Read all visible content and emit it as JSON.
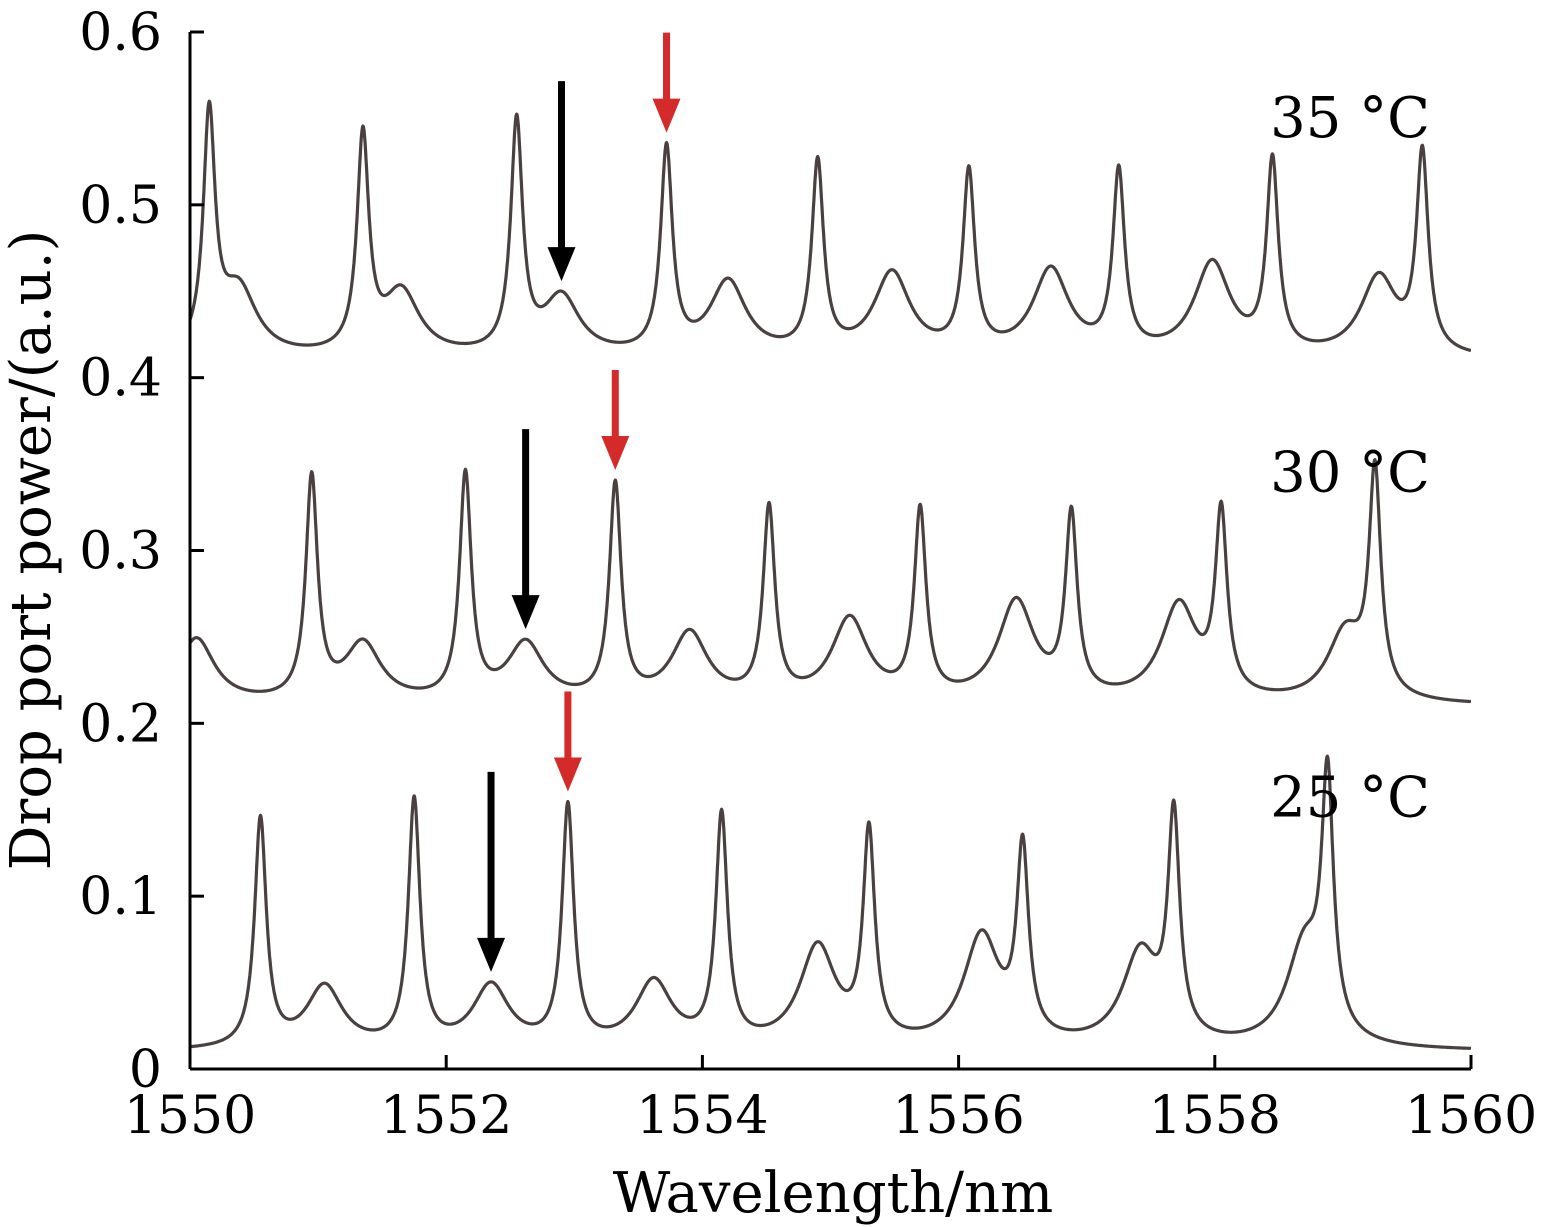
{
  "chart_data": {
    "type": "line",
    "title": "",
    "xlabel": "Wavelength/nm",
    "ylabel": "Drop port power/(a.u.)",
    "xlim": [
      1550,
      1560
    ],
    "ylim": [
      0,
      0.6
    ],
    "xticks": [
      "1550",
      "1552",
      "1554",
      "1556",
      "1558",
      "1560"
    ],
    "yticks": [
      "0",
      "0.1",
      "0.2",
      "0.3",
      "0.4",
      "0.5",
      "0.6"
    ],
    "grid": false,
    "colors": {
      "trace": "#4a4040",
      "axis": "#000000",
      "marker_red": "#d42a2a",
      "marker_black": "#000000"
    },
    "series": [
      {
        "label": "25 °C",
        "baseline": 0.01,
        "sharp_peaks": [
          {
            "x": 1550.55,
            "y": 0.142
          },
          {
            "x": 1551.75,
            "y": 0.152
          },
          {
            "x": 1552.95,
            "y": 0.148
          },
          {
            "x": 1554.15,
            "y": 0.142
          },
          {
            "x": 1555.3,
            "y": 0.13
          },
          {
            "x": 1556.5,
            "y": 0.118
          },
          {
            "x": 1557.68,
            "y": 0.136
          },
          {
            "x": 1558.88,
            "y": 0.152
          }
        ],
        "broad_peaks": [
          {
            "x": 1551.05,
            "y": 0.046
          },
          {
            "x": 1552.35,
            "y": 0.046
          },
          {
            "x": 1553.62,
            "y": 0.048
          },
          {
            "x": 1554.9,
            "y": 0.068
          },
          {
            "x": 1556.18,
            "y": 0.074
          },
          {
            "x": 1557.42,
            "y": 0.064
          },
          {
            "x": 1558.7,
            "y": 0.068
          }
        ],
        "black_arrow_x": 1552.35,
        "red_arrow_x": 1552.95
      },
      {
        "label": "30 °C",
        "baseline": 0.21,
        "sharp_peaks": [
          {
            "x": 1550.95,
            "y": 0.338
          },
          {
            "x": 1552.15,
            "y": 0.34
          },
          {
            "x": 1553.32,
            "y": 0.334
          },
          {
            "x": 1554.52,
            "y": 0.32
          },
          {
            "x": 1555.7,
            "y": 0.318
          },
          {
            "x": 1556.88,
            "y": 0.314
          },
          {
            "x": 1558.05,
            "y": 0.314
          },
          {
            "x": 1559.25,
            "y": 0.337
          }
        ],
        "broad_peaks": [
          {
            "x": 1550.05,
            "y": 0.248
          },
          {
            "x": 1551.35,
            "y": 0.244
          },
          {
            "x": 1552.62,
            "y": 0.244
          },
          {
            "x": 1553.9,
            "y": 0.25
          },
          {
            "x": 1555.15,
            "y": 0.258
          },
          {
            "x": 1556.45,
            "y": 0.268
          },
          {
            "x": 1557.72,
            "y": 0.266
          },
          {
            "x": 1559.02,
            "y": 0.25
          }
        ],
        "black_arrow_x": 1552.62,
        "red_arrow_x": 1553.32
      },
      {
        "label": "35 °C",
        "baseline": 0.41,
        "sharp_peaks": [
          {
            "x": 1550.15,
            "y": 0.545
          },
          {
            "x": 1551.35,
            "y": 0.534
          },
          {
            "x": 1552.55,
            "y": 0.543
          },
          {
            "x": 1553.72,
            "y": 0.528
          },
          {
            "x": 1554.9,
            "y": 0.52
          },
          {
            "x": 1556.08,
            "y": 0.514
          },
          {
            "x": 1557.25,
            "y": 0.514
          },
          {
            "x": 1558.45,
            "y": 0.52
          },
          {
            "x": 1559.62,
            "y": 0.524
          }
        ],
        "broad_peaks": [
          {
            "x": 1550.38,
            "y": 0.449
          },
          {
            "x": 1551.65,
            "y": 0.447
          },
          {
            "x": 1552.9,
            "y": 0.444
          },
          {
            "x": 1554.2,
            "y": 0.453
          },
          {
            "x": 1555.48,
            "y": 0.458
          },
          {
            "x": 1556.72,
            "y": 0.46
          },
          {
            "x": 1557.98,
            "y": 0.464
          },
          {
            "x": 1559.28,
            "y": 0.456
          }
        ],
        "black_arrow_x": 1552.9,
        "red_arrow_x": 1553.72
      }
    ]
  }
}
